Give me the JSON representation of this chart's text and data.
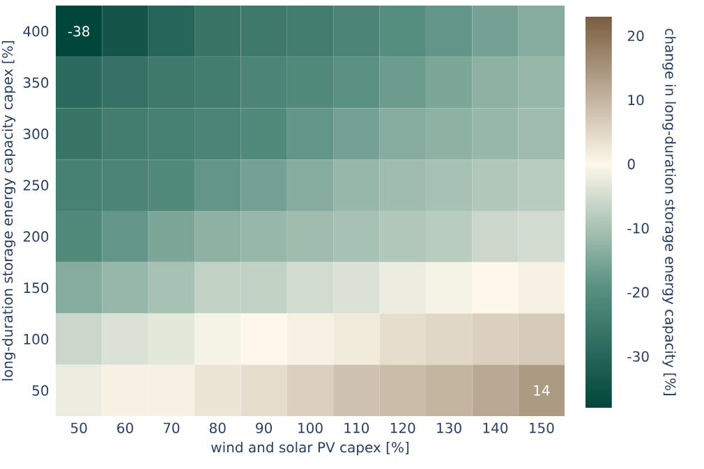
{
  "chart_data": {
    "type": "heatmap",
    "xlabel": "wind and solar PV capex [%]",
    "ylabel": "long-duration storage energy capacity capex [%]",
    "clabel": "change in long-duration storage energy capacity [%]",
    "categories": [
      "50",
      "60",
      "70",
      "80",
      "90",
      "100",
      "110",
      "120",
      "130",
      "140",
      "150"
    ],
    "y_categories": [
      "400",
      "350",
      "300",
      "250",
      "200",
      "150",
      "100",
      "50"
    ],
    "cells": [
      [
        -38,
        -34,
        -30,
        -26,
        -25,
        -24,
        -22,
        -20,
        -18,
        -16,
        -14
      ],
      [
        -29,
        -27,
        -25,
        -24,
        -22,
        -21,
        -19,
        -17,
        -15,
        -13,
        -12
      ],
      [
        -26,
        -24,
        -23,
        -22,
        -21,
        -18,
        -16,
        -14,
        -13,
        -12,
        -11
      ],
      [
        -23,
        -22,
        -21,
        -18,
        -16,
        -14,
        -12,
        -11,
        -10,
        -9,
        -8
      ],
      [
        -21,
        -18,
        -15,
        -13,
        -12,
        -11,
        -10,
        -9,
        -8,
        -6,
        -5
      ],
      [
        -14,
        -12,
        -10,
        -7,
        -7,
        -5,
        -4,
        -2,
        -1,
        0,
        1
      ],
      [
        -6,
        -4,
        -3,
        -1,
        0,
        1,
        2,
        4,
        5,
        6,
        7
      ],
      [
        -2,
        1,
        1,
        3,
        4,
        6,
        8,
        9,
        10,
        12,
        14
      ]
    ],
    "cell_labels": [
      [
        "-38",
        null,
        null,
        null,
        null,
        null,
        null,
        null,
        null,
        null,
        null
      ],
      [
        null,
        null,
        null,
        null,
        null,
        null,
        null,
        null,
        null,
        null,
        null
      ],
      [
        null,
        null,
        null,
        null,
        null,
        null,
        null,
        null,
        null,
        null,
        null
      ],
      [
        null,
        null,
        null,
        null,
        null,
        null,
        null,
        null,
        null,
        null,
        null
      ],
      [
        null,
        null,
        null,
        null,
        null,
        null,
        null,
        null,
        null,
        null,
        null
      ],
      [
        null,
        null,
        null,
        null,
        null,
        null,
        null,
        null,
        null,
        null,
        null
      ],
      [
        null,
        null,
        null,
        null,
        null,
        null,
        null,
        null,
        null,
        null,
        null
      ],
      [
        null,
        null,
        null,
        null,
        null,
        null,
        null,
        null,
        null,
        null,
        "14"
      ]
    ],
    "clim": [
      -38,
      23
    ],
    "cticks": [
      -30,
      -20,
      -10,
      0,
      10,
      20
    ]
  }
}
